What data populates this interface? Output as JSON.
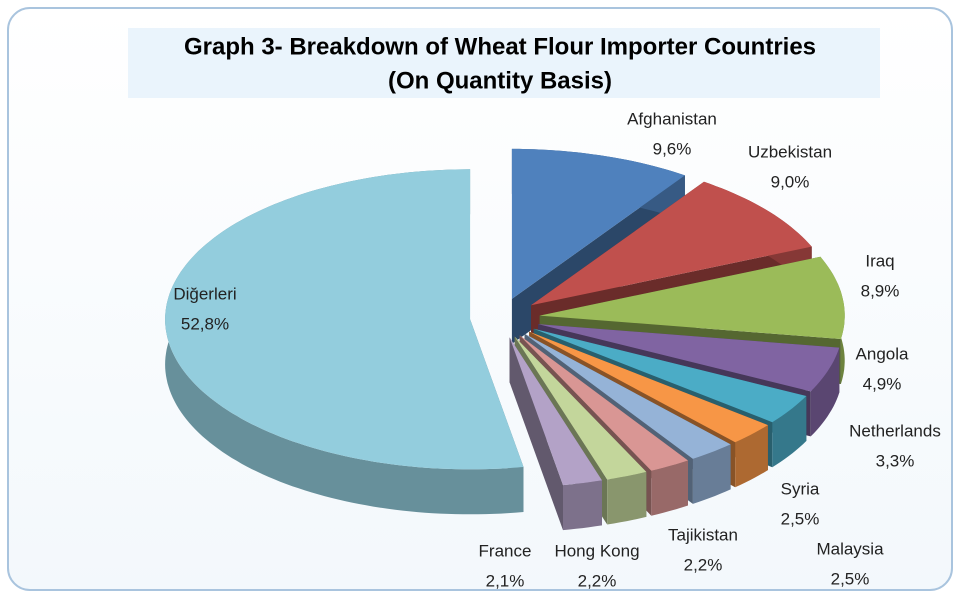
{
  "chart_data": {
    "type": "pie",
    "title": [
      "Graph 3- Breakdown of Wheat Flour Importer Countries",
      "(On Quantity Basis)"
    ],
    "categories": [
      "Afghanistan",
      "Uzbekistan",
      "Iraq",
      "Angola",
      "Netherlands",
      "Syria",
      "Malaysia",
      "Tajikistan",
      "Hong Kong",
      "France",
      "Diğerleri"
    ],
    "values": [
      9.6,
      9.0,
      8.9,
      4.9,
      3.3,
      2.5,
      2.5,
      2.2,
      2.2,
      2.1,
      52.8
    ],
    "value_labels": [
      "9,6%",
      "9,0%",
      "8,9%",
      "4,9%",
      "3,3%",
      "2,5%",
      "2,5%",
      "2,2%",
      "2,2%",
      "2,1%",
      "52,8%"
    ],
    "colors": [
      "#4f81bd",
      "#c0504d",
      "#9bbb59",
      "#8064a2",
      "#4bacc6",
      "#f79646",
      "#95b3d7",
      "#d99694",
      "#c3d69b",
      "#b3a2c7",
      "#93cddd"
    ]
  }
}
